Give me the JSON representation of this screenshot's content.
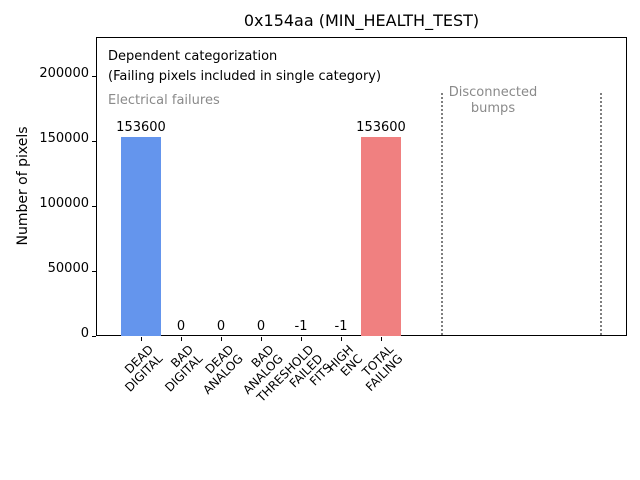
{
  "chart_data": {
    "type": "bar",
    "title": "0x154aa (MIN_HEALTH_TEST)",
    "ylabel": "Number of pixels",
    "categories": [
      "DEAD\nDIGITAL",
      "BAD\nDIGITAL",
      "DEAD\nANALOG",
      "BAD\nANALOG",
      "THRESHOLD\nFAILED\nFITS",
      "HIGH\nENC",
      "TOTAL\nFAILING"
    ],
    "values": [
      153600,
      0,
      0,
      0,
      -1,
      -1,
      153600
    ],
    "value_labels": [
      "153600",
      "0",
      "0",
      "0",
      "-1",
      "-1",
      "153600"
    ],
    "bar_colors": [
      "#6495ed",
      "#6495ed",
      "#6495ed",
      "#6495ed",
      "#6495ed",
      "#6495ed",
      "#f08080"
    ],
    "ylim": [
      0,
      230400
    ],
    "yticks": [
      0,
      50000,
      100000,
      150000,
      200000
    ],
    "ytick_labels": [
      "0",
      "50000",
      "100000",
      "150000",
      "200000"
    ],
    "grid": false,
    "legend": null,
    "annotations": [
      {
        "text": "Dependent categorization",
        "color": "#000000"
      },
      {
        "text": "(Failing pixels included in single category)",
        "color": "#000000"
      },
      {
        "text": "Electrical failures",
        "color": "#8a8a8a"
      },
      {
        "text": "Disconnected\nbumps",
        "color": "#8a8a8a"
      }
    ],
    "vlines": {
      "count": 2,
      "style": "dotted",
      "color": "#7f7f7f",
      "label": "Disconnected bumps region"
    }
  }
}
